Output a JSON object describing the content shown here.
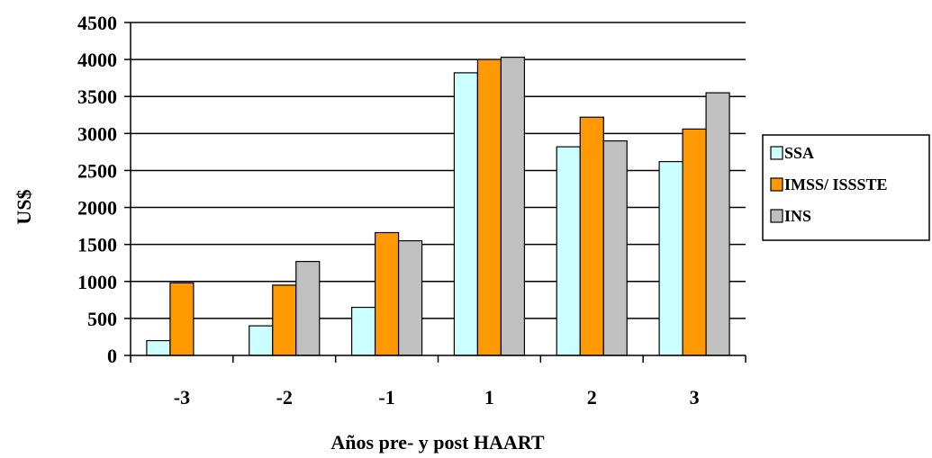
{
  "chart_data": {
    "type": "bar",
    "title": "",
    "xlabel": "Años pre- y post HAART",
    "ylabel": "US$",
    "ylim": [
      0,
      4500
    ],
    "yticks": [
      0,
      500,
      1000,
      1500,
      2000,
      2500,
      3000,
      3500,
      4000,
      4500
    ],
    "grid": true,
    "legend_position": "right",
    "categories": [
      "-3",
      "-2",
      "-1",
      "1",
      "2",
      "3"
    ],
    "series": [
      {
        "name": "SSA",
        "color": "#ccffff",
        "values": [
          200,
          400,
          650,
          3820,
          2820,
          2620
        ]
      },
      {
        "name": "IMSS/ ISSSTE",
        "color": "#ff9900",
        "values": [
          980,
          950,
          1660,
          4000,
          3220,
          3060
        ]
      },
      {
        "name": "INS",
        "color": "#c0c0c0",
        "values": [
          null,
          1270,
          1550,
          4030,
          2900,
          3550
        ]
      }
    ]
  }
}
